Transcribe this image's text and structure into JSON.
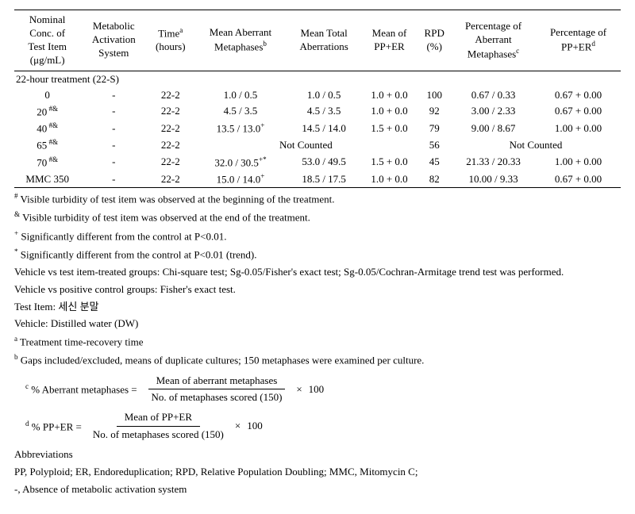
{
  "headers": {
    "c1": "Nominal\nConc. of\nTest Item\n(μg/mL)",
    "c2": "Metabolic\nActivation\nSystem",
    "c3_html": "Time<sup>a</sup><br>(hours)",
    "c4_html": "Mean Aberrant<br>Metaphases<sup>b</sup>",
    "c5": "Mean Total\nAberrations",
    "c6": "Mean of\nPP+ER",
    "c7": "RPD\n(%)",
    "c8_html": "Percentage of<br>Aberrant<br>Metaphases<sup>c</sup>",
    "c9_html": "Percentage of<br>PP+ER<sup>d</sup>"
  },
  "section_title": "22-hour treatment (22-S)",
  "rows": [
    {
      "conc": "0",
      "sup": "",
      "act": "-",
      "time": "22-2",
      "aber": "1.0  /  0.5",
      "tot": "1.0  / 0.5",
      "pper": "1.0  + 0.0",
      "rpd": "100",
      "paber": "0.67  /  0.33",
      "ppper": "0.67  +  0.00"
    },
    {
      "conc": "20",
      "sup": "#&",
      "act": "-",
      "time": "22-2",
      "aber": "4.5  /  3.5",
      "tot": "4.5  / 3.5",
      "pper": "1.0  + 0.0",
      "rpd": "92",
      "paber": "3.00  /  2.33",
      "ppper": "0.67  +  0.00"
    },
    {
      "conc": "40",
      "sup": "#&",
      "act": "-",
      "time": "22-2",
      "aber_html": "13.5  /  13.0<sup>+</sup>",
      "tot": "14.5  / 14.0",
      "pper": "1.5  + 0.0",
      "rpd": "79",
      "paber": "9.00  /  8.67",
      "ppper": "1.00  +  0.00"
    },
    {
      "conc": "65",
      "sup": "#&",
      "act": "-",
      "time": "22-2",
      "notcounted_left": "Not    Counted",
      "rpd": "56",
      "notcounted_right": "Not    Counted"
    },
    {
      "conc": "70",
      "sup": "#&",
      "act": "-",
      "time": "22-2",
      "aber_html": "32.0  /  30.5<sup>+*</sup>",
      "tot": "53.0  / 49.5",
      "pper": "1.5  + 0.0",
      "rpd": "45",
      "paber": "21.33  /  20.33",
      "ppper": "1.00  +  0.00"
    },
    {
      "conc": "MMC 350",
      "sup": "",
      "act": "-",
      "time": "22-2",
      "aber_html": "15.0  /  14.0<sup>+</sup>",
      "tot": "18.5  / 17.5",
      "pper": "1.0  + 0.0",
      "rpd": "82",
      "paber": "10.00  /  9.33",
      "ppper": "0.67  +  0.00"
    }
  ],
  "footnotes": {
    "hash_html": "<sup>#</sup> Visible turbidity of test item was observed at the beginning of the treatment.",
    "amp_html": "<sup>&amp;</sup> Visible turbidity of test item was observed at the end of the treatment.",
    "plus_html": "<sup>+</sup> Significantly different from the control at P&lt;0.01.",
    "star_html": "<sup>*</sup> Significantly different from the control at P&lt;0.01 (trend).",
    "p1": "Vehicle vs test item-treated groups: Chi-square test; Sg-0.05/Fisher's exact test; Sg-0.05/Cochran-Armitage trend test was performed.",
    "p2": "Vehicle vs positive control groups: Fisher's exact test.",
    "p3": "Test Item: 세신 분말",
    "p4": "Vehicle: Distilled water (DW)",
    "sup_a_html": "<sup>a</sup> Treatment time-recovery time",
    "sup_b_html": "<sup>b</sup> Gaps included/excluded, means of duplicate cultures; 150 metaphases were examined per culture.",
    "formula_c": {
      "lead_html": "<sup>c</sup> % Aberrant metaphases  =",
      "num": "Mean    of aberrant metaphases",
      "den": "No. of metaphases scored (150)",
      "tail": "100",
      "times": "×"
    },
    "formula_d": {
      "lead_html": "<sup>d</sup> % PP+ER  =",
      "num": "Mean    of PP+ER",
      "den": "No. of metaphases scored (150)",
      "tail": "100",
      "times": "×"
    },
    "abbr_title": "Abbreviations",
    "abbr1": "PP, Polyploid; ER, Endoreduplication; RPD, Relative Population Doubling; MMC, Mitomycin C;",
    "abbr2": "-, Absence of metabolic activation system"
  }
}
